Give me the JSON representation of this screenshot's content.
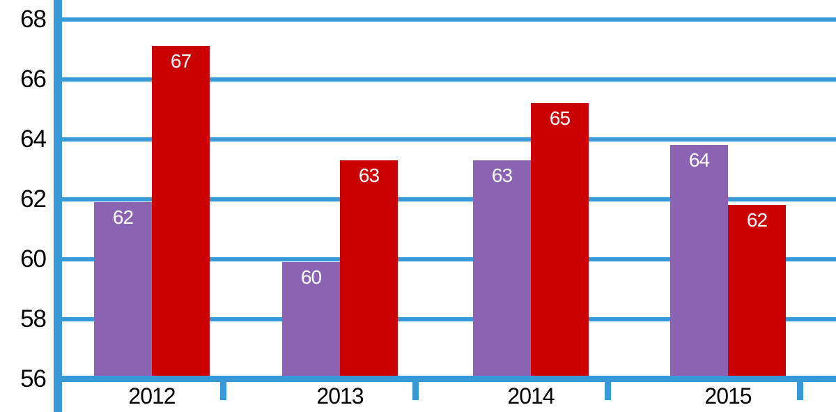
{
  "chart_data": {
    "type": "bar",
    "categories": [
      "2012",
      "2013",
      "2014",
      "2015"
    ],
    "series": [
      {
        "name": "purple-series",
        "color": "#8A63B2",
        "values": [
          62,
          60,
          63,
          64
        ],
        "plotted": [
          61.9,
          59.9,
          63.3,
          63.8
        ]
      },
      {
        "name": "red-series",
        "color": "#CB0000",
        "values": [
          67,
          63,
          65,
          62
        ],
        "plotted": [
          67.1,
          63.3,
          65.2,
          61.8
        ]
      }
    ],
    "ylim": [
      56,
      68
    ],
    "yticks": [
      56,
      58,
      60,
      62,
      64,
      66,
      68
    ],
    "grid": true,
    "gridline_color": "#3899D8",
    "axis_color": "#3899D8",
    "data_label_color": "#FFFFFF",
    "tick_label_color": "#000000",
    "legend": "none",
    "title": ""
  }
}
